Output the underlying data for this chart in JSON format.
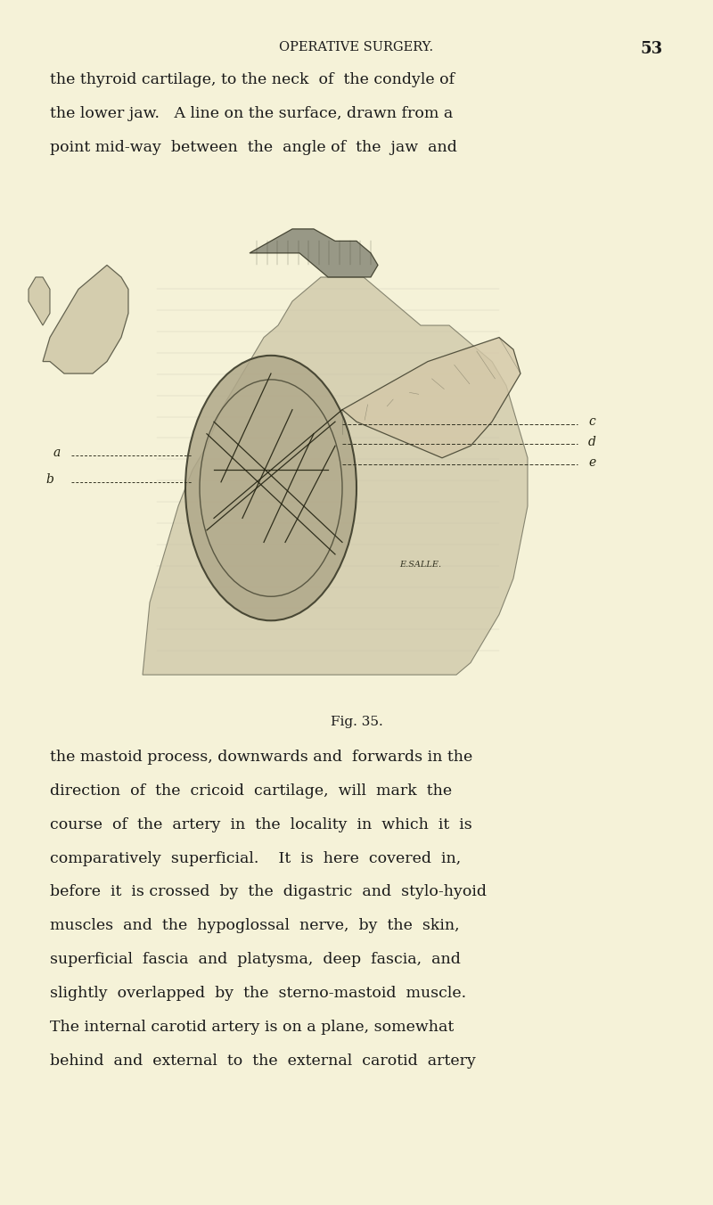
{
  "bg_color": "#f5f2d8",
  "page_width": 8.0,
  "page_height": 13.52,
  "header_text": "OPERATIVE SURGERY.",
  "page_number": "53",
  "top_paragraph_lines": [
    "the thyroid cartilage, to the neck  of  the condyle of",
    "the lower jaw.   A line on the surface, drawn from a",
    "point mid-way  between  the  angle of  the  jaw  and"
  ],
  "caption": "Fig. 35.",
  "bottom_paragraph_lines": [
    "the mastoid process, downwards and  forwards in the",
    "direction  of  the  cricoid  cartilage,  will  mark  the",
    "course  of  the  artery  in  the  locality  in  which  it  is",
    "comparatively  superficial.    It  is  here  covered  in,",
    "before  it  is crossed  by  the  digastric  and  stylo-hyoid",
    "muscles  and  the  hypoglossal  nerve,  by  the  skin,",
    "superficial  fascia  and  platysma,  deep  fascia,  and",
    "slightly  overlapped  by  the  sterno-mastoid  muscle.",
    "The internal carotid artery is on a plane, somewhat",
    "behind  and  external  to  the  external  carotid  artery"
  ],
  "text_color": "#1a1a1a",
  "header_color": "#1a1a1a",
  "label_a": "a",
  "label_b": "b",
  "label_c": "c",
  "label_d": "d",
  "label_e": "e",
  "body_fill": "#c8c0a0",
  "body_edge": "#555544",
  "surgical_fill": "#b0a88a",
  "surgical_edge": "#333322",
  "flap_fill": "#d4c8a8",
  "flap_edge": "#333322",
  "chin_fill": "#ccc4a4",
  "chin_edge": "#444433",
  "hair_fill": "#888878",
  "hair_edge": "#333322"
}
